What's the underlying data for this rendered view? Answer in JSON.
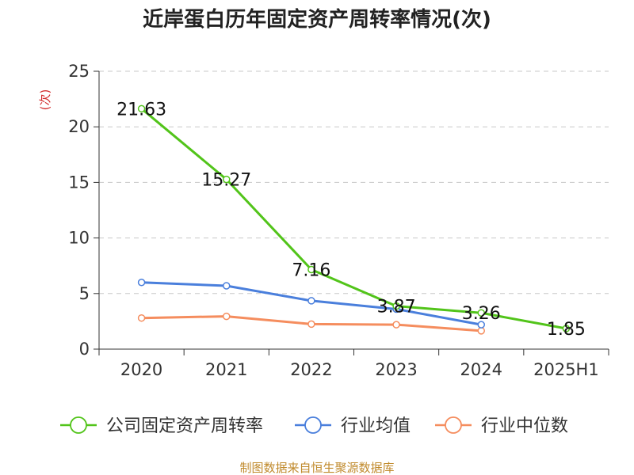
{
  "chart_data": {
    "type": "line",
    "title": "近岸蛋白历年固定资产周转率情况(次)",
    "ylabel": "(次)",
    "xlabel": "",
    "categories": [
      "2020",
      "2021",
      "2022",
      "2023",
      "2024",
      "2025H1"
    ],
    "ylim": [
      0,
      25
    ],
    "yticks": [
      0,
      5,
      10,
      15,
      20,
      25
    ],
    "grid": true,
    "legend_position": "bottom",
    "series": [
      {
        "name": "公司固定资产周转率",
        "color": "#52c41a",
        "values": [
          21.63,
          15.27,
          7.16,
          3.87,
          3.26,
          1.85
        ],
        "labels": [
          "21.63",
          "15.27",
          "7.16",
          "3.87",
          "3.26",
          "1.85"
        ]
      },
      {
        "name": "行业均值",
        "color": "#4a7fdc",
        "values": [
          6.0,
          5.7,
          4.35,
          3.6,
          2.2,
          null
        ]
      },
      {
        "name": "行业中位数",
        "color": "#f58d5e",
        "values": [
          2.8,
          2.95,
          2.25,
          2.2,
          1.65,
          null
        ]
      }
    ],
    "source": "制图数据来自恒生聚源数据库",
    "colors": {
      "axis": "#333333",
      "grid": "#c8c8c8",
      "ylabel": "#d32f2f",
      "source": "#c08a2c"
    }
  }
}
